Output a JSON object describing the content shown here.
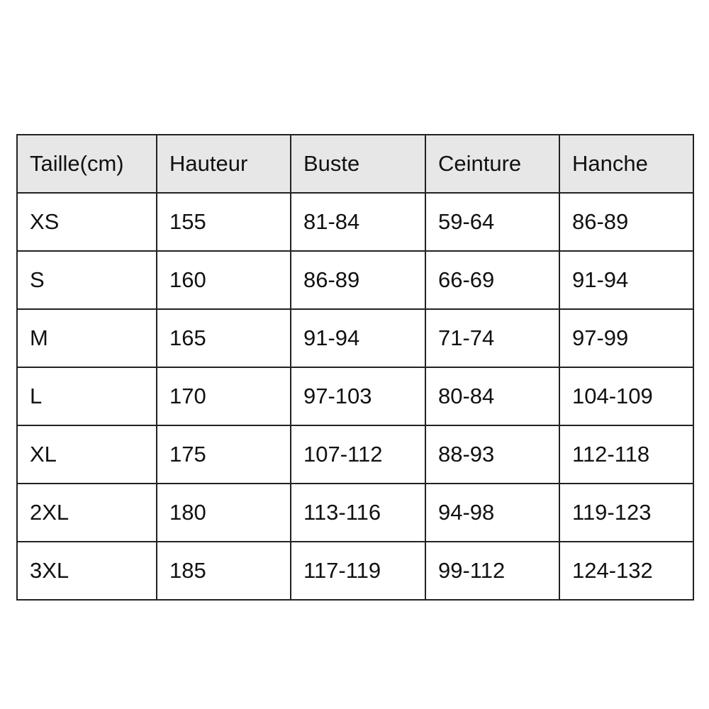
{
  "table": {
    "headers": [
      "Taille(cm)",
      "Hauteur",
      "Buste",
      "Ceinture",
      "Hanche"
    ],
    "rows": [
      [
        "XS",
        "155",
        "81-84",
        "59-64",
        "86-89"
      ],
      [
        "S",
        "160",
        "86-89",
        "66-69",
        "91-94"
      ],
      [
        "M",
        "165",
        "91-94",
        "71-74",
        "97-99"
      ],
      [
        "L",
        "170",
        "97-103",
        "80-84",
        "104-109"
      ],
      [
        "XL",
        "175",
        "107-112",
        "88-93",
        "112-118"
      ],
      [
        "2XL",
        "180",
        "113-116",
        "94-98",
        "119-123"
      ],
      [
        "3XL",
        "185",
        "117-119",
        "99-112",
        "124-132"
      ]
    ],
    "header_background": "#e7e7e7",
    "border_color": "#222222"
  }
}
